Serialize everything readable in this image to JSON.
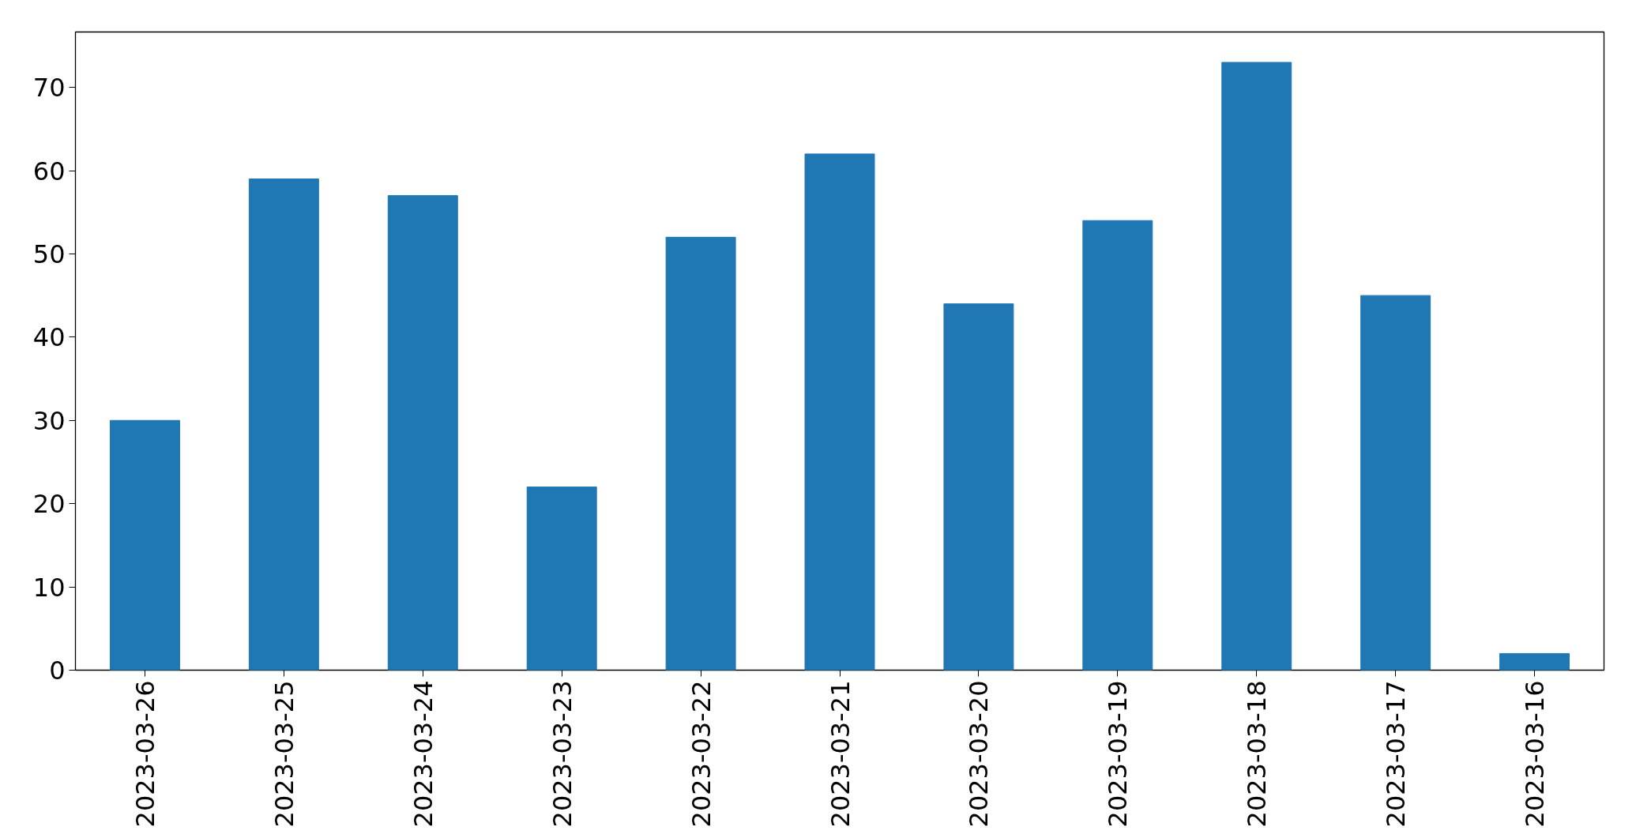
{
  "chart_data": {
    "type": "bar",
    "categories": [
      "2023-03-26",
      "2023-03-25",
      "2023-03-24",
      "2023-03-23",
      "2023-03-22",
      "2023-03-21",
      "2023-03-20",
      "2023-03-19",
      "2023-03-18",
      "2023-03-17",
      "2023-03-16"
    ],
    "values": [
      30,
      59,
      57,
      22,
      52,
      62,
      44,
      54,
      73,
      45,
      2
    ],
    "color": "#1f77b4",
    "ylim": [
      0,
      76.65
    ],
    "yticks": [
      0,
      10,
      20,
      30,
      40,
      50,
      60,
      70
    ],
    "grid": false
  }
}
